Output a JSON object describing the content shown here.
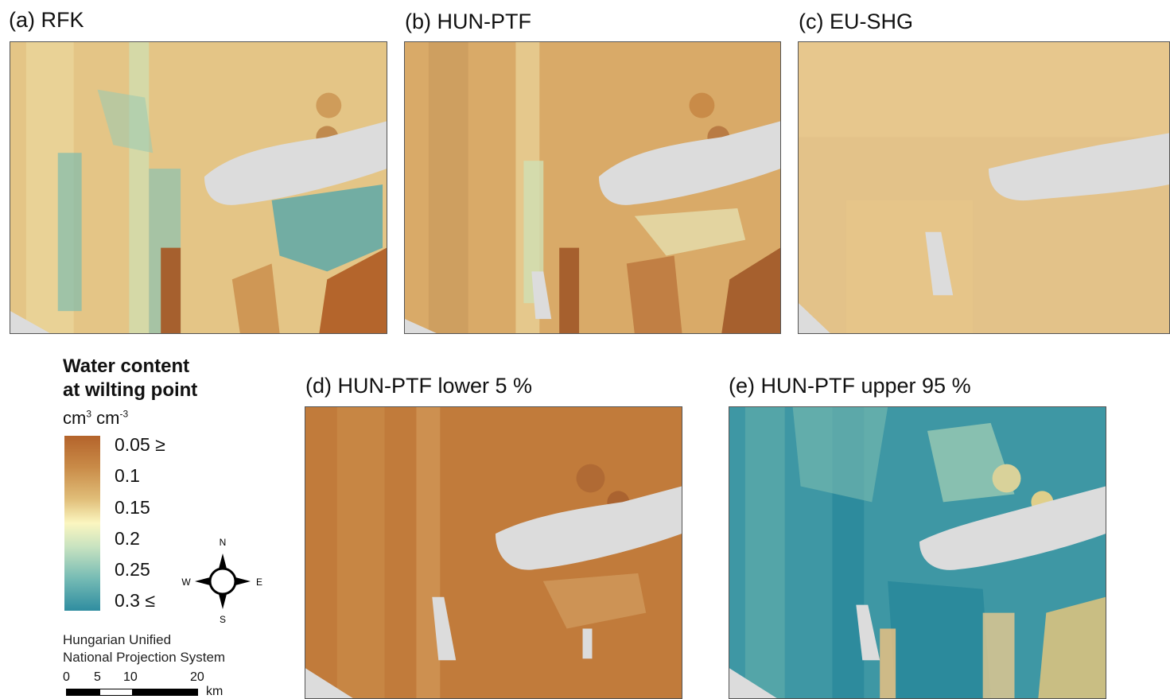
{
  "panels": {
    "a": {
      "title": "(a) RFK"
    },
    "b": {
      "title": "(b) HUN-PTF"
    },
    "c": {
      "title": "(c) EU-SHG"
    },
    "d": {
      "title": "(d) HUN-PTF lower 5 %"
    },
    "e": {
      "title": "(e) HUN-PTF upper 95 %"
    }
  },
  "legend": {
    "title_line1": "Water content",
    "title_line2": "at wilting point",
    "unit_base": "cm",
    "unit_exp1": "3",
    "unit_mid": " cm",
    "unit_exp2": "-3",
    "ticks": [
      "0.05 ≥",
      "0.1",
      "0.15",
      "0.2",
      "0.25",
      "0.3 ≤"
    ],
    "colors": [
      "#b4632b",
      "#c98b48",
      "#e0bd78",
      "#fbf6c0",
      "#74bab4",
      "#2f8da0"
    ]
  },
  "projection": {
    "line1": "Hungarian Unified",
    "line2": "National Projection System"
  },
  "scale_bar": {
    "labels": [
      "0",
      "5",
      "10",
      "20"
    ],
    "unit": "km"
  },
  "compass": {
    "n": "N",
    "s": "S",
    "e": "E",
    "w": "W"
  },
  "map_colors": {
    "dry": "#b4632b",
    "mid": "#e0bd78",
    "wet": "#2f8da0",
    "lake": "#dcdcdc"
  }
}
